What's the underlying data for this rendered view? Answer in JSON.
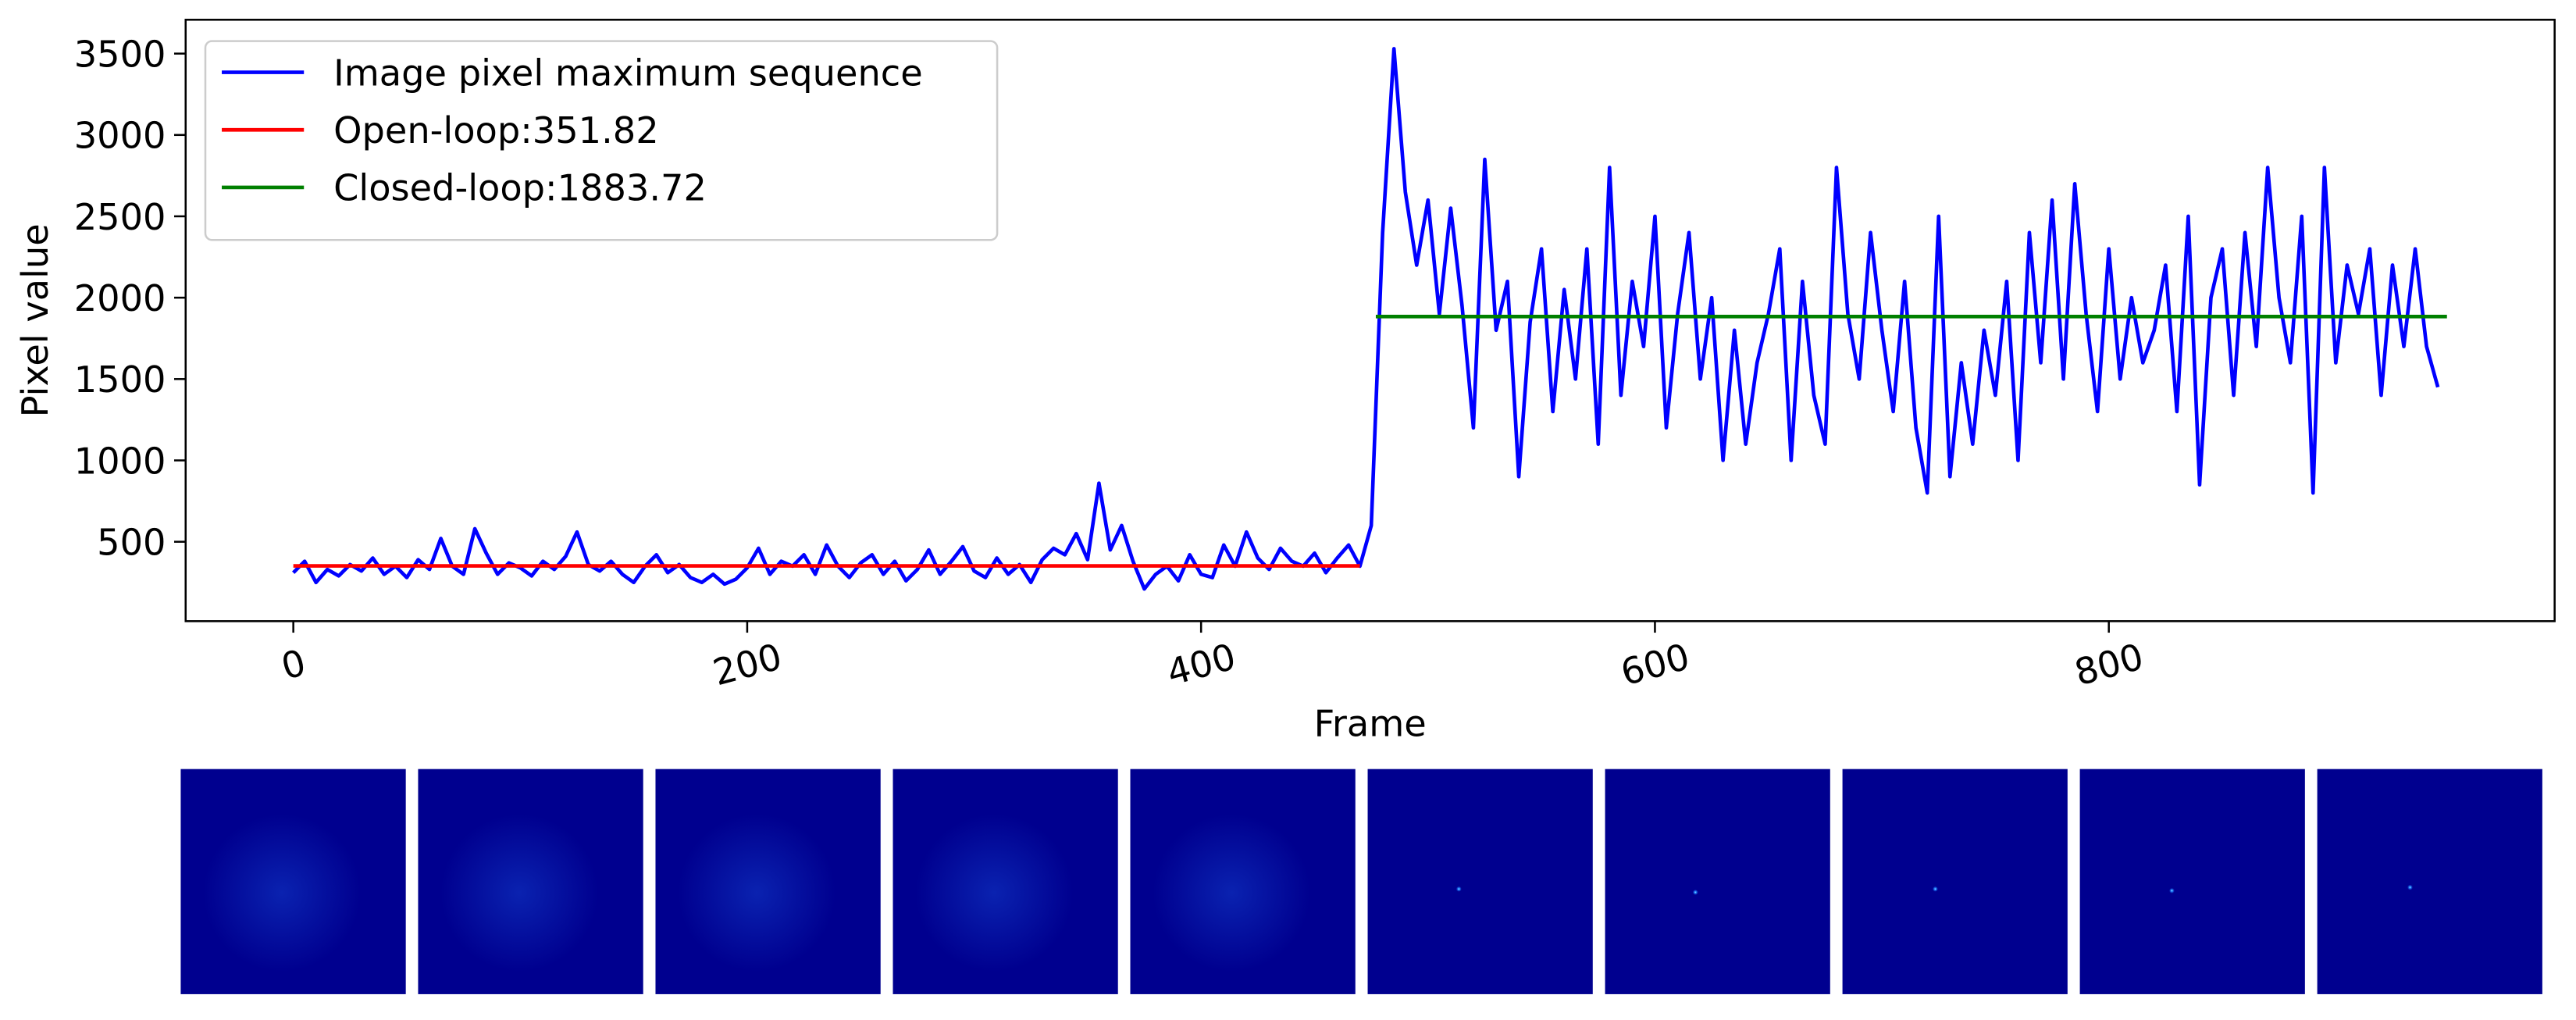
{
  "chart_data": {
    "type": "line",
    "xlabel": "Frame",
    "ylabel": "Pixel value",
    "xlim": [
      -47.45,
      996.45
    ],
    "ylim": [
      12,
      3708
    ],
    "xticks": [
      0,
      200,
      400,
      600,
      800
    ],
    "yticks": [
      500,
      1000,
      1500,
      2000,
      2500,
      3000,
      3500
    ],
    "grid": false,
    "legend": "upper left",
    "series": [
      {
        "name": "Image pixel maximum sequence",
        "color": "#0000ff",
        "x": [
          0,
          5,
          10,
          15,
          20,
          25,
          30,
          35,
          40,
          45,
          50,
          55,
          60,
          65,
          70,
          75,
          80,
          85,
          90,
          95,
          100,
          105,
          110,
          115,
          120,
          125,
          130,
          135,
          140,
          145,
          150,
          155,
          160,
          165,
          170,
          175,
          180,
          185,
          190,
          195,
          200,
          205,
          210,
          215,
          220,
          225,
          230,
          235,
          240,
          245,
          250,
          255,
          260,
          265,
          270,
          275,
          280,
          285,
          290,
          295,
          300,
          305,
          310,
          315,
          320,
          325,
          330,
          335,
          340,
          345,
          350,
          355,
          360,
          365,
          370,
          375,
          380,
          385,
          390,
          395,
          400,
          405,
          410,
          415,
          420,
          425,
          430,
          435,
          440,
          445,
          450,
          455,
          460,
          465,
          470,
          475,
          480,
          485,
          490,
          495,
          500,
          505,
          510,
          515,
          520,
          525,
          530,
          535,
          540,
          545,
          550,
          555,
          560,
          565,
          570,
          575,
          580,
          585,
          590,
          595,
          600,
          605,
          610,
          615,
          620,
          625,
          630,
          635,
          640,
          645,
          650,
          655,
          660,
          665,
          670,
          675,
          680,
          685,
          690,
          695,
          700,
          705,
          710,
          715,
          720,
          725,
          730,
          735,
          740,
          745,
          750,
          755,
          760,
          765,
          770,
          775,
          780,
          785,
          790,
          795,
          800,
          805,
          810,
          815,
          820,
          825,
          830,
          835,
          840,
          845,
          850,
          855,
          860,
          865,
          870,
          875,
          880,
          885,
          890,
          895,
          900,
          905,
          910,
          915,
          920,
          925,
          930,
          935,
          940,
          945
        ],
        "values": [
          310,
          380,
          250,
          330,
          290,
          360,
          320,
          400,
          300,
          350,
          280,
          390,
          330,
          520,
          350,
          300,
          580,
          430,
          300,
          370,
          340,
          290,
          380,
          330,
          410,
          560,
          360,
          320,
          380,
          300,
          250,
          350,
          420,
          310,
          360,
          280,
          250,
          300,
          240,
          270,
          340,
          460,
          300,
          380,
          350,
          420,
          300,
          480,
          350,
          280,
          370,
          420,
          300,
          380,
          260,
          330,
          450,
          300,
          380,
          470,
          320,
          280,
          400,
          300,
          360,
          250,
          390,
          460,
          420,
          550,
          390,
          860,
          450,
          600,
          380,
          210,
          300,
          350,
          260,
          420,
          300,
          280,
          480,
          350,
          560,
          400,
          330,
          460,
          380,
          350,
          430,
          310,
          400,
          480,
          350,
          600,
          2400,
          3530,
          2650,
          2200,
          2600,
          1900,
          2550,
          1950,
          1200,
          2850,
          1800,
          2100,
          900,
          1850,
          2300,
          1300,
          2050,
          1500,
          2300,
          1100,
          2800,
          1400,
          2100,
          1700,
          2500,
          1200,
          1900,
          2400,
          1500,
          2000,
          1000,
          1800,
          1100,
          1600,
          1900,
          2300,
          1000,
          2100,
          1400,
          1100,
          2800,
          1900,
          1500,
          2400,
          1800,
          1300,
          2100,
          1200,
          800,
          2500,
          900,
          1600,
          1100,
          1800,
          1400,
          2100,
          1000,
          2400,
          1600,
          2600,
          1500,
          2700,
          1900,
          1300,
          2300,
          1500,
          2000,
          1600,
          1800,
          2200,
          1300,
          2500,
          850,
          2000,
          2300,
          1400,
          2400,
          1700,
          2800,
          2000,
          1600,
          2500,
          800,
          2800,
          1600,
          2200,
          1900,
          2300,
          1400,
          2200,
          1700,
          2300,
          1700,
          1450
        ]
      },
      {
        "name": "Open-loop:351.82",
        "color": "#ff0000",
        "x": [
          0,
          470
        ],
        "values": [
          351.82,
          351.82
        ]
      },
      {
        "name": "Closed-loop:1883.72",
        "color": "#008000",
        "x": [
          477,
          949
        ],
        "values": [
          1883.72,
          1883.72
        ]
      }
    ]
  }
}
